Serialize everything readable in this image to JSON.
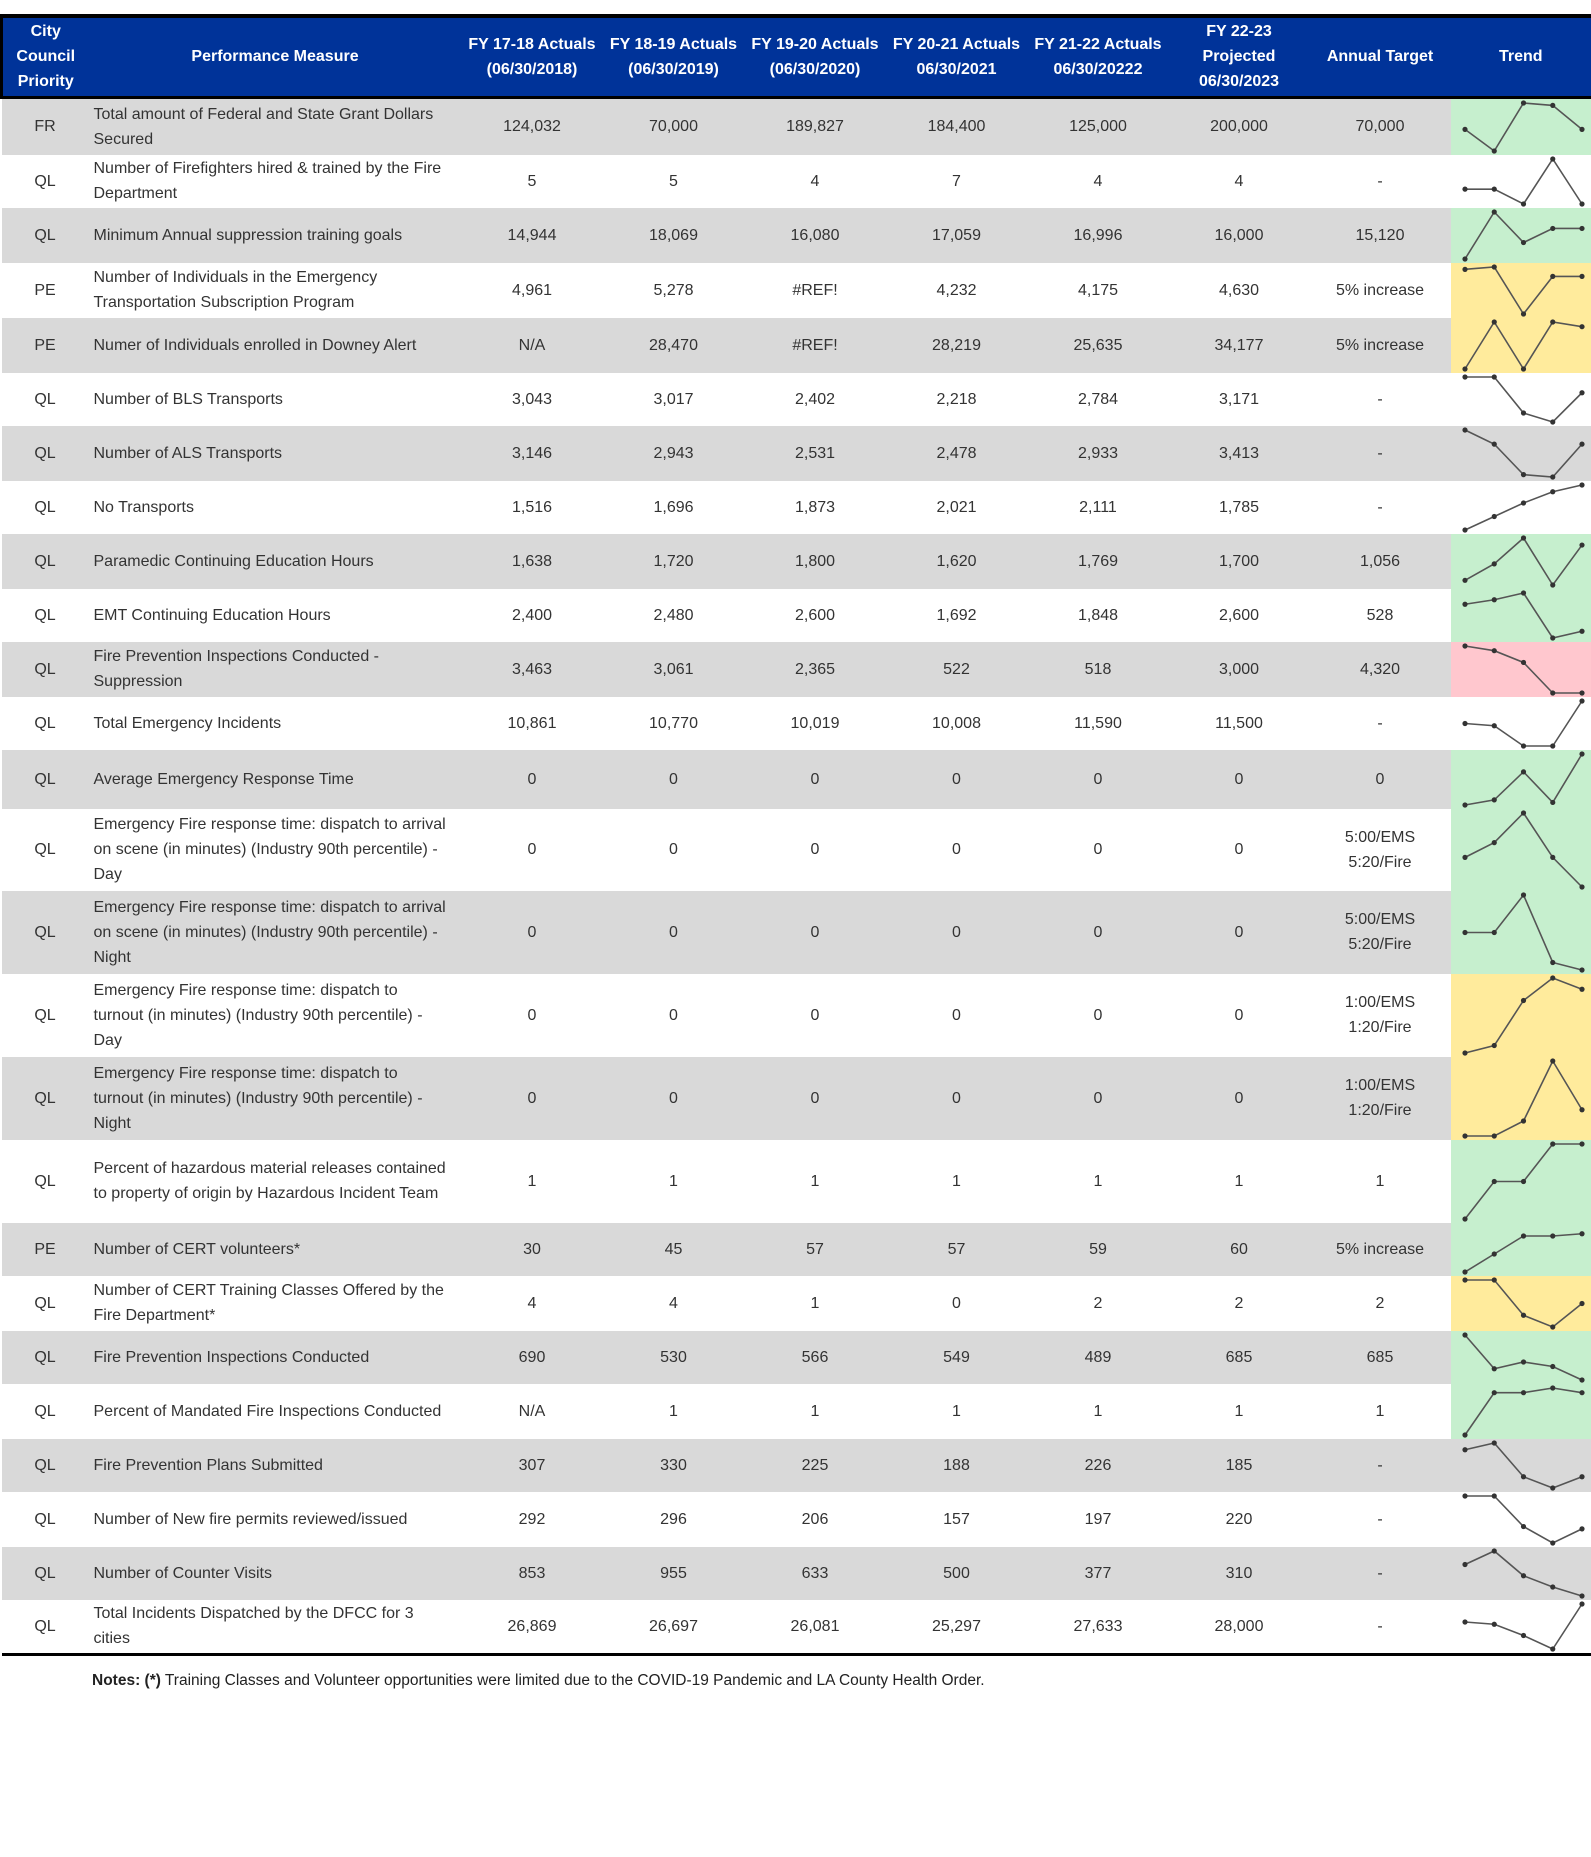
{
  "columns": [
    "City Council Priority",
    "Performance Measure",
    "FY 17-18 Actuals (06/30/2018)",
    "FY 18-19 Actuals (06/30/2019)",
    "FY 19-20 Actuals (06/30/2020)",
    "FY 20-21 Actuals 06/30/2021",
    "FY 21-22 Actuals 06/30/20222",
    "FY 22-23 Projected 06/30/2023",
    "Annual Target",
    "Trend"
  ],
  "colors": {
    "header_bg": "#003399",
    "row_gray": "#d9d9d9",
    "green": "#c6efce",
    "yellow": "#ffeb9c",
    "red": "#ffc7ce",
    "gray": "#d9d9d9",
    "white": "#ffffff",
    "spark": "#555555"
  },
  "rows": [
    {
      "priority": "FR",
      "measure": "Total amount of Federal and State Grant Dollars Secured",
      "values": [
        "124,032",
        "70,000",
        "189,827",
        "184,400",
        "125,000",
        "200,000"
      ],
      "target": "70,000",
      "trend_color": "green",
      "trend": [
        0.45,
        0,
        1,
        0.95,
        0.45
      ]
    },
    {
      "priority": "QL",
      "measure": "Number of Firefighters hired & trained by the Fire Department",
      "values": [
        "5",
        "5",
        "4",
        "7",
        "4",
        "4"
      ],
      "target": "-",
      "trend_color": "white",
      "trend": [
        0.33,
        0.33,
        0,
        1,
        0
      ]
    },
    {
      "priority": "QL",
      "measure": "Minimum Annual suppression training goals",
      "values": [
        "14,944",
        "18,069",
        "16,080",
        "17,059",
        "16,996",
        "16,000"
      ],
      "target": "15,120",
      "trend_color": "green",
      "trend": [
        0,
        1,
        0.35,
        0.65,
        0.65
      ]
    },
    {
      "priority": "PE",
      "measure": "Number of Individuals in the Emergency Transportation Subscription Program",
      "values": [
        "4,961",
        "5,278",
        "#REF!",
        "4,232",
        "4,175",
        "4,630"
      ],
      "target": "5% increase",
      "trend_color": "yellow",
      "trend": [
        0.95,
        1,
        0,
        0.8,
        0.8
      ]
    },
    {
      "priority": "PE",
      "measure": "Numer of Individuals enrolled in Downey Alert",
      "values": [
        "N/A",
        "28,470",
        "#REF!",
        "28,219",
        "25,635",
        "34,177"
      ],
      "target": "5% increase",
      "trend_color": "yellow",
      "trend": [
        0,
        1,
        0,
        1,
        0.9
      ]
    },
    {
      "priority": "QL",
      "measure": "Number of BLS Transports",
      "values": [
        "3,043",
        "3,017",
        "2,402",
        "2,218",
        "2,784",
        "3,171"
      ],
      "target": "-",
      "trend_color": "white",
      "trend": [
        1,
        1,
        0.2,
        0,
        0.65
      ]
    },
    {
      "priority": "QL",
      "measure": "Number of ALS Transports",
      "values": [
        "3,146",
        "2,943",
        "2,531",
        "2,478",
        "2,933",
        "3,413"
      ],
      "target": "-",
      "trend_color": "gray",
      "trend": [
        1,
        0.7,
        0.05,
        0,
        0.7
      ]
    },
    {
      "priority": "QL",
      "measure": "No Transports",
      "values": [
        "1,516",
        "1,696",
        "1,873",
        "2,021",
        "2,111",
        "1,785"
      ],
      "target": "-",
      "trend_color": "white",
      "trend": [
        0,
        0.3,
        0.6,
        0.85,
        1
      ]
    },
    {
      "priority": "QL",
      "measure": "Paramedic Continuing Education Hours",
      "values": [
        "1,638",
        "1,720",
        "1,800",
        "1,620",
        "1,769",
        "1,700"
      ],
      "target": "1,056",
      "trend_color": "green",
      "trend": [
        0.1,
        0.45,
        1,
        0,
        0.85
      ]
    },
    {
      "priority": "QL",
      "measure": "EMT Continuing Education Hours",
      "values": [
        "2,400",
        "2,480",
        "2,600",
        "1,692",
        "1,848",
        "2,600"
      ],
      "target": "528",
      "trend_color": "green",
      "trend": [
        0.75,
        0.85,
        1,
        0,
        0.15
      ]
    },
    {
      "priority": "QL",
      "measure": "Fire Prevention Inspections Conducted - Suppression",
      "values": [
        "3,463",
        "3,061",
        "2,365",
        "522",
        "518",
        "3,000"
      ],
      "target": "4,320",
      "trend_color": "red",
      "trend": [
        1,
        0.9,
        0.65,
        0,
        0
      ]
    },
    {
      "priority": "QL",
      "measure": "Total Emergency Incidents",
      "values": [
        "10,861",
        "10,770",
        "10,019",
        "10,008",
        "11,590",
        "11,500"
      ],
      "target": "-",
      "trend_color": "white",
      "trend": [
        0.5,
        0.45,
        0,
        0,
        1
      ]
    },
    {
      "priority": "QL",
      "measure": "Average Emergency Response Time",
      "values": [
        "0",
        "0",
        "0",
        "0",
        "0",
        "0"
      ],
      "target": "0",
      "trend_color": "green",
      "trend": [
        0,
        0.1,
        0.65,
        0.05,
        1
      ]
    },
    {
      "priority": "QL",
      "measure": "Emergency Fire response time: dispatch to arrival on scene (in minutes) (Industry 90th percentile) - Day",
      "values": [
        "0",
        "0",
        "0",
        "0",
        "0",
        "0"
      ],
      "target": "5:00/EMS 5:20/Fire",
      "trend_color": "green",
      "trend": [
        0.4,
        0.6,
        1,
        0.4,
        0
      ]
    },
    {
      "priority": "QL",
      "measure": "Emergency Fire response time: dispatch to arrival on scene (in minutes) (Industry 90th percentile) - Night",
      "values": [
        "0",
        "0",
        "0",
        "0",
        "0",
        "0"
      ],
      "target": "5:00/EMS 5:20/Fire",
      "trend_color": "green",
      "trend": [
        0.5,
        0.5,
        1,
        0.1,
        0
      ]
    },
    {
      "priority": "QL",
      "measure": "Emergency Fire response time: dispatch to turnout (in minutes) (Industry 90th percentile) - Day",
      "values": [
        "0",
        "0",
        "0",
        "0",
        "0",
        "0"
      ],
      "target": "1:00/EMS 1:20/Fire",
      "trend_color": "yellow",
      "trend": [
        0,
        0.1,
        0.7,
        1,
        0.85
      ]
    },
    {
      "priority": "QL",
      "measure": "Emergency Fire response time: dispatch to turnout (in minutes) (Industry 90th percentile) - Night",
      "values": [
        "0",
        "0",
        "0",
        "0",
        "0",
        "0"
      ],
      "target": "1:00/EMS 1:20/Fire",
      "trend_color": "yellow",
      "trend": [
        0,
        0,
        0.2,
        1,
        0.35
      ]
    },
    {
      "priority": "QL",
      "measure": "Percent of hazardous material releases contained to property of origin by Hazardous Incident Team",
      "values": [
        "1",
        "1",
        "1",
        "1",
        "1",
        "1"
      ],
      "target": "1",
      "trend_color": "green",
      "trend": [
        0,
        0.5,
        0.5,
        1,
        1
      ]
    },
    {
      "priority": "PE",
      "measure": "Number of CERT volunteers*",
      "values": [
        "30",
        "45",
        "57",
        "57",
        "59",
        "60"
      ],
      "target": "5% increase",
      "trend_color": "green",
      "trend": [
        0,
        0.4,
        0.8,
        0.8,
        0.85
      ]
    },
    {
      "priority": "QL",
      "measure": "Number of CERT Training Classes Offered by the Fire Department*",
      "values": [
        "4",
        "4",
        "1",
        "0",
        "2",
        "2"
      ],
      "target": "2",
      "trend_color": "yellow",
      "trend": [
        1,
        1,
        0.25,
        0,
        0.5
      ]
    },
    {
      "priority": "QL",
      "measure": "Fire Prevention Inspections Conducted",
      "values": [
        "690",
        "530",
        "566",
        "549",
        "489",
        "685"
      ],
      "target": "685",
      "trend_color": "green",
      "trend": [
        1,
        0.25,
        0.4,
        0.3,
        0
      ]
    },
    {
      "priority": "QL",
      "measure": "Percent of Mandated Fire Inspections Conducted",
      "values": [
        "N/A",
        "1",
        "1",
        "1",
        "1",
        "1"
      ],
      "target": "1",
      "trend_color": "green",
      "trend": [
        0,
        0.9,
        0.9,
        1,
        0.9
      ]
    },
    {
      "priority": "QL",
      "measure": "Fire Prevention Plans Submitted",
      "values": [
        "307",
        "330",
        "225",
        "188",
        "226",
        "185"
      ],
      "target": "-",
      "trend_color": "gray",
      "trend": [
        0.85,
        1,
        0.25,
        0,
        0.25
      ]
    },
    {
      "priority": "QL",
      "measure": "Number of New fire permits reviewed/issued",
      "values": [
        "292",
        "296",
        "206",
        "157",
        "197",
        "220"
      ],
      "target": "-",
      "trend_color": "white",
      "trend": [
        1,
        1,
        0.35,
        0,
        0.3
      ]
    },
    {
      "priority": "QL",
      "measure": "Number of Counter Visits",
      "values": [
        "853",
        "955",
        "633",
        "500",
        "377",
        "310"
      ],
      "target": "-",
      "trend_color": "gray",
      "trend": [
        0.7,
        1,
        0.45,
        0.2,
        0
      ]
    },
    {
      "priority": "QL",
      "measure": "Total Incidents Dispatched by the DFCC for 3 cities",
      "values": [
        "26,869",
        "26,697",
        "26,081",
        "25,297",
        "27,633",
        "28,000"
      ],
      "target": "-",
      "trend_color": "white",
      "trend": [
        0.6,
        0.55,
        0.3,
        0,
        1
      ]
    }
  ],
  "notes": {
    "label": "Notes: (*)",
    "text": " Training Classes and Volunteer opportunities were limited due to the COVID-19 Pandemic and LA County Health Order."
  }
}
